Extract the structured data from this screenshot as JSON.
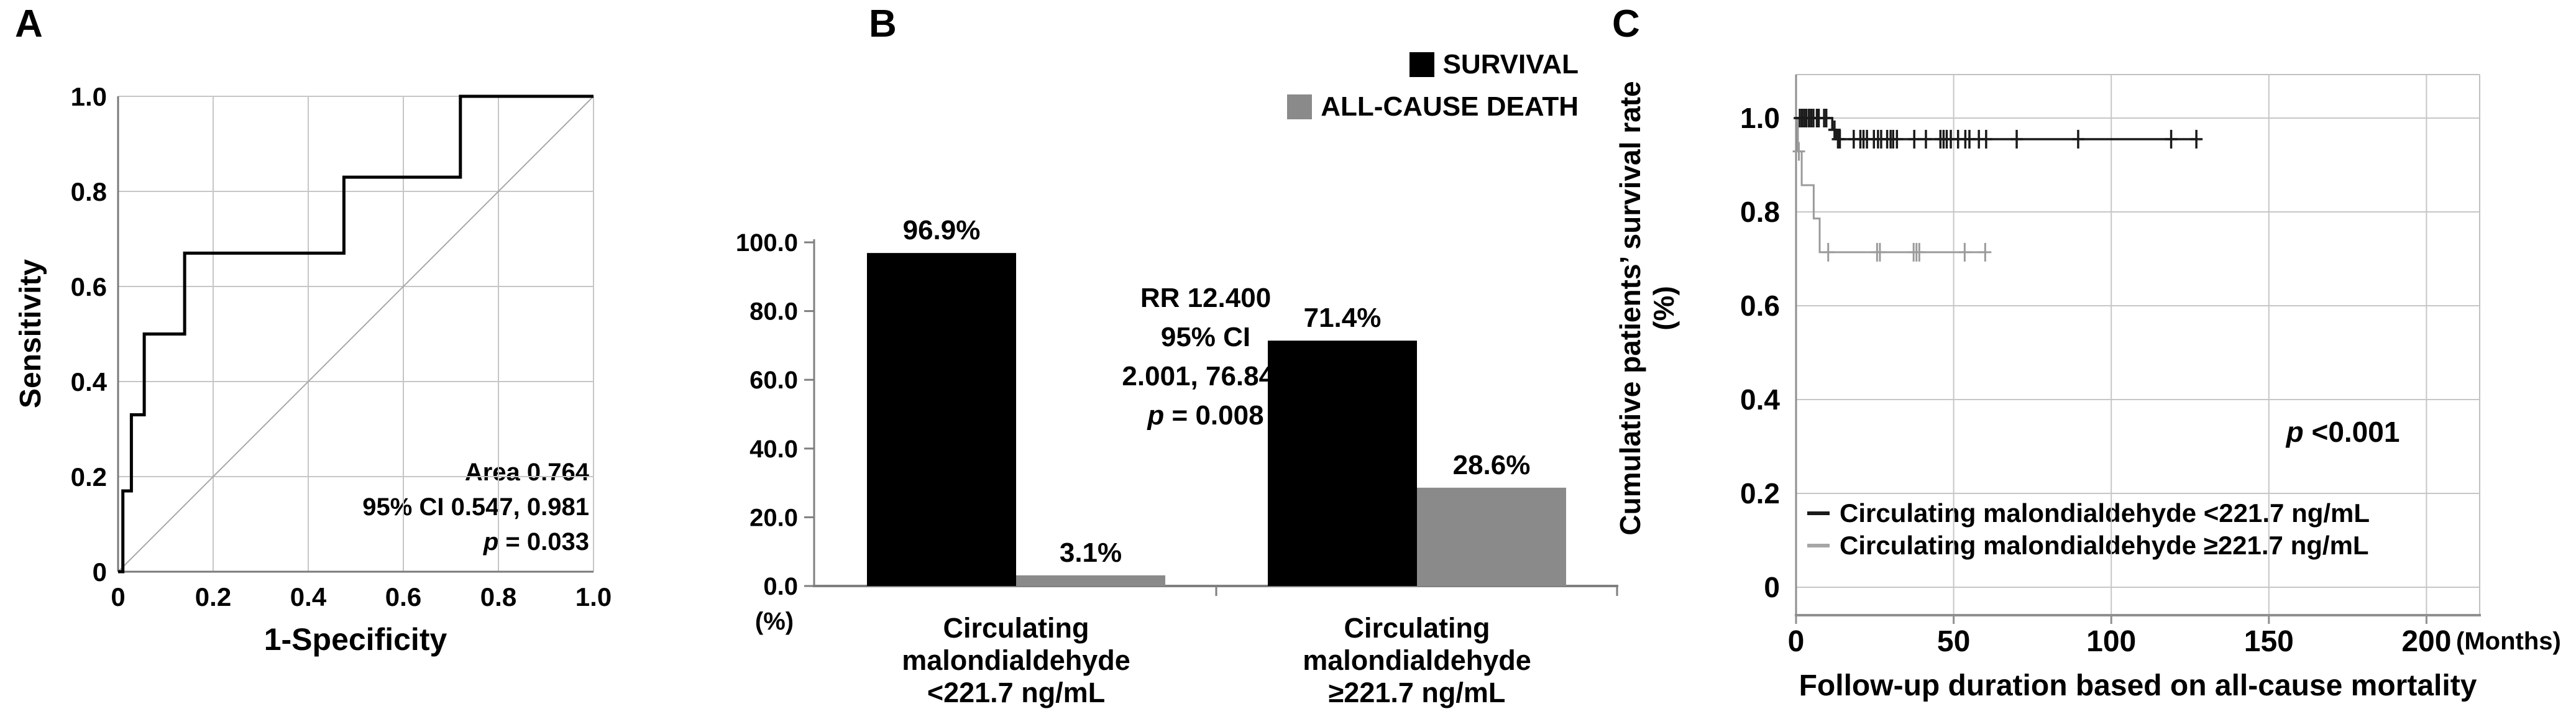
{
  "figure": {
    "background": "#ffffff",
    "accent_black": "#000000",
    "accent_gray": "#8a8a8a",
    "grid_color": "#c6c6c6"
  },
  "panels": {
    "a": {
      "letter": "A",
      "y_title": "Sensitivity",
      "x_title": "1-Specificity",
      "annotation": {
        "line1": "Area 0.764",
        "line2": "95% CI 0.547, 0.981",
        "p_italic": "p",
        "p_rest": " = 0.033"
      }
    },
    "b": {
      "letter": "B",
      "percent_label": "(%)",
      "annotation": {
        "line1": "RR 12.400",
        "line2": "95% CI",
        "line3": "2.001, 76.842",
        "p_italic": "p",
        "p_rest": " = 0.008"
      },
      "legend": [
        {
          "label": "SURVIVAL",
          "color": "#000000"
        },
        {
          "label": "ALL-CAUSE DEATH",
          "color": "#8a8a8a"
        }
      ],
      "category1": "Circulating\nmalondialdehyde\n<221.7 ng/mL",
      "category2": "Circulating\nmalondialdehyde\n≥221.7 ng/mL"
    },
    "c": {
      "letter": "C",
      "y_title": "Cumulative patients’ survival rate\n(%)",
      "x_title": "Follow-up duration based on all-cause mortality",
      "months_label": "(Months)",
      "p_italic": "p",
      "p_rest": " <0.001",
      "legend": [
        {
          "label": "Circulating malondialdehyde <221.7 ng/mL",
          "color": "#1a1a1a"
        },
        {
          "label": "Circulating malondialdehyde ≥221.7 ng/mL",
          "color": "#a6a6a6"
        }
      ]
    }
  },
  "chart_data": [
    {
      "id": "panel-a-roc",
      "type": "line",
      "subtype": "roc-step",
      "xlabel": "1-Specificity",
      "ylabel": "Sensitivity",
      "xlim": [
        0,
        1
      ],
      "ylim": [
        0,
        1
      ],
      "grid": true,
      "diagonal_reference": true,
      "xticks": {
        "values": [
          0,
          0.2,
          0.4,
          0.6,
          0.8,
          1.0
        ],
        "labels": [
          "0",
          "0.2",
          "0.4",
          "0.6",
          "0.8",
          "1.0"
        ]
      },
      "yticks": {
        "values": [
          0,
          0.2,
          0.4,
          0.6,
          0.8,
          1.0
        ],
        "labels": [
          "0",
          "0.2",
          "0.4",
          "0.6",
          "0.8",
          "1.0"
        ]
      },
      "series": [
        {
          "name": "ROC curve",
          "color": "#000000",
          "points": [
            [
              0,
              0
            ],
            [
              0.01,
              0
            ],
            [
              0.01,
              0.17
            ],
            [
              0.028,
              0.17
            ],
            [
              0.028,
              0.33
            ],
            [
              0.055,
              0.33
            ],
            [
              0.055,
              0.5
            ],
            [
              0.14,
              0.5
            ],
            [
              0.14,
              0.67
            ],
            [
              0.475,
              0.67
            ],
            [
              0.475,
              0.83
            ],
            [
              0.72,
              0.83
            ],
            [
              0.72,
              1.0
            ],
            [
              1.0,
              1.0
            ]
          ]
        }
      ],
      "annotation": {
        "area": "0.764",
        "ci_95": "0.547, 0.981",
        "p": "0.033"
      }
    },
    {
      "id": "panel-b-bars",
      "type": "bar",
      "categories": [
        "Circulating malondialdehyde <221.7 ng/mL",
        "Circulating malondialdehyde ≥221.7 ng/mL"
      ],
      "series": [
        {
          "name": "SURVIVAL",
          "color": "#000000",
          "values": [
            96.9,
            71.4
          ]
        },
        {
          "name": "ALL-CAUSE DEATH",
          "color": "#8a8a8a",
          "values": [
            3.1,
            28.6
          ]
        }
      ],
      "value_labels": [
        [
          "96.9%",
          "71.4%"
        ],
        [
          "3.1%",
          "28.6%"
        ]
      ],
      "ylabel": "(%)",
      "ylim": [
        0,
        100
      ],
      "yticks": {
        "values": [
          0,
          20,
          40,
          60,
          80,
          100
        ],
        "labels": [
          "0.0",
          "20.0",
          "40.0",
          "60.0",
          "80.0",
          "100.0"
        ]
      },
      "legend_position": "top-right",
      "annotation": {
        "rr": "12.400",
        "ci_95": "2.001, 76.842",
        "p": "0.008"
      }
    },
    {
      "id": "panel-c-km",
      "type": "line",
      "subtype": "kaplan-meier",
      "xlabel": "Follow-up duration based on all-cause mortality",
      "x_unit": "(Months)",
      "ylabel": "Cumulative patients’ survival rate (%)",
      "xlim": [
        0,
        217
      ],
      "ylim": [
        0,
        1.1
      ],
      "grid": true,
      "xticks": {
        "values": [
          0,
          50,
          100,
          150,
          200
        ],
        "labels": [
          "0",
          "50",
          "100",
          "150",
          "200"
        ]
      },
      "yticks": {
        "values": [
          0,
          0.2,
          0.4,
          0.6,
          0.8,
          1.0
        ],
        "labels": [
          "0",
          "0.2",
          "0.4",
          "0.6",
          "0.8",
          "1.0"
        ]
      },
      "p_value": "<0.001",
      "series": [
        {
          "name": "Circulating malondialdehyde <221.7 ng/mL",
          "color": "#1a1a1a",
          "steps": [
            [
              0,
              1
            ],
            [
              11.5,
              1
            ],
            [
              11.5,
              0.975
            ],
            [
              12.8,
              0.975
            ],
            [
              12.8,
              0.955
            ],
            [
              127,
              0.955
            ]
          ],
          "censors": [
            [
              1.2,
              1
            ],
            [
              1.9,
              1
            ],
            [
              2.6,
              1
            ],
            [
              3.3,
              1
            ],
            [
              4.1,
              1
            ],
            [
              4.8,
              1
            ],
            [
              5.5,
              1
            ],
            [
              6.6,
              1
            ],
            [
              7.2,
              1
            ],
            [
              8.9,
              1
            ],
            [
              9.6,
              1
            ],
            [
              12.2,
              0.975
            ],
            [
              13.3,
              0.955
            ],
            [
              13.9,
              0.955
            ],
            [
              18.3,
              0.955
            ],
            [
              20.4,
              0.955
            ],
            [
              21.4,
              0.955
            ],
            [
              22.5,
              0.955
            ],
            [
              24.7,
              0.955
            ],
            [
              26,
              0.955
            ],
            [
              27,
              0.955
            ],
            [
              28.9,
              0.955
            ],
            [
              30,
              0.955
            ],
            [
              30.8,
              0.955
            ],
            [
              32,
              0.955
            ],
            [
              37.5,
              0.955
            ],
            [
              41.2,
              0.955
            ],
            [
              45.8,
              0.955
            ],
            [
              46.8,
              0.955
            ],
            [
              47.8,
              0.955
            ],
            [
              49.1,
              0.955
            ],
            [
              51.4,
              0.955
            ],
            [
              53.7,
              0.955
            ],
            [
              55,
              0.955
            ],
            [
              58,
              0.955
            ],
            [
              60.3,
              0.955
            ],
            [
              70,
              0.955
            ],
            [
              89.5,
              0.955
            ],
            [
              119,
              0.955
            ],
            [
              127,
              0.955
            ]
          ]
        },
        {
          "name": "Circulating malondialdehyde ≥221.7 ng/mL",
          "color": "#9b9b9b",
          "steps": [
            [
              0,
              1
            ],
            [
              0.6,
              1
            ],
            [
              0.6,
              0.929
            ],
            [
              1.8,
              0.929
            ],
            [
              1.8,
              0.857
            ],
            [
              5.6,
              0.857
            ],
            [
              5.6,
              0.786
            ],
            [
              7.5,
              0.786
            ],
            [
              7.5,
              0.714
            ],
            [
              60.5,
              0.714
            ]
          ],
          "censors": [
            [
              0.9,
              0.929
            ],
            [
              10.2,
              0.714
            ],
            [
              25.7,
              0.714
            ],
            [
              26.6,
              0.714
            ],
            [
              37.3,
              0.714
            ],
            [
              38.2,
              0.714
            ],
            [
              39.1,
              0.714
            ],
            [
              53.5,
              0.714
            ],
            [
              60,
              0.714
            ]
          ]
        }
      ]
    }
  ]
}
